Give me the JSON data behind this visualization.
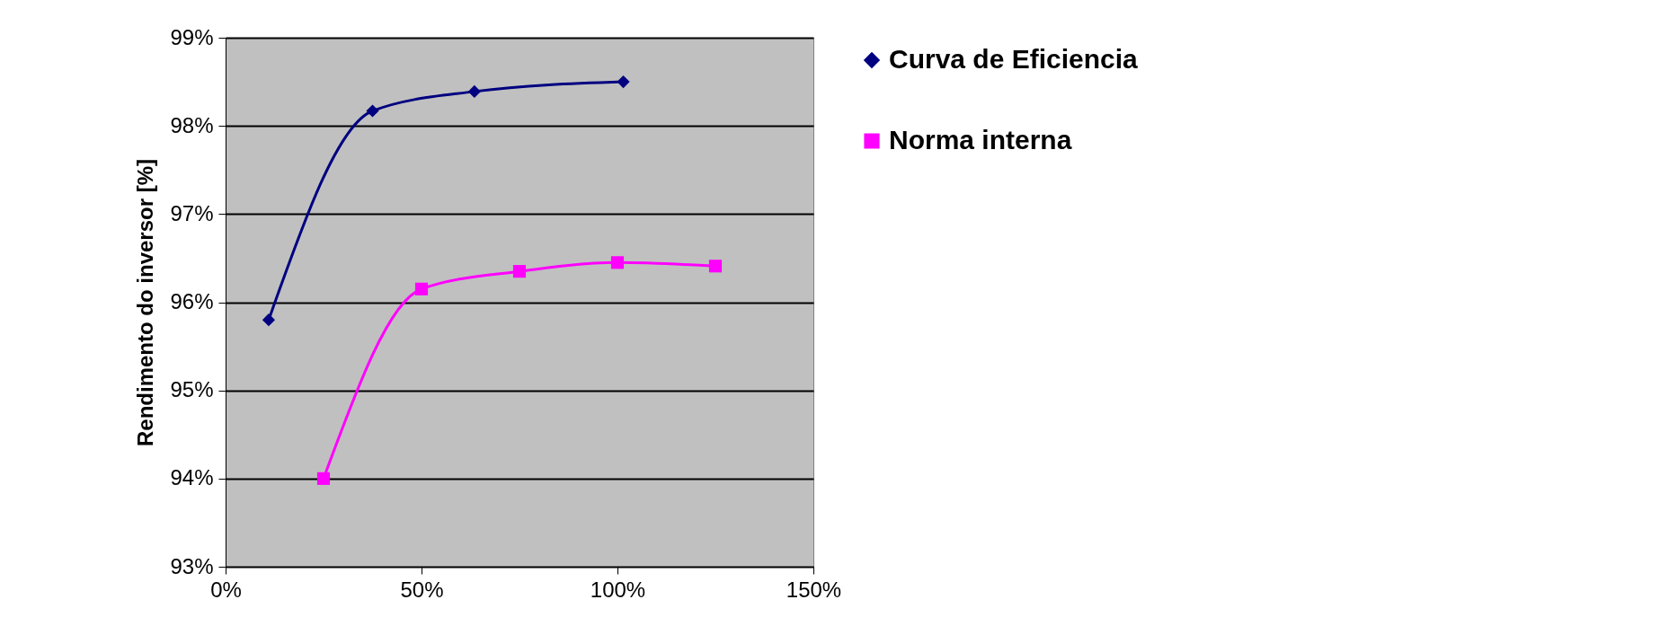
{
  "chart_data": {
    "type": "line",
    "ylabel": "Rendimento do inversor [%]",
    "xlim": [
      0,
      150
    ],
    "xticks": [
      {
        "value": 0,
        "label": "0%"
      },
      {
        "value": 50,
        "label": "50%"
      },
      {
        "value": 100,
        "label": "100%"
      },
      {
        "value": 150,
        "label": "150%"
      }
    ],
    "ylim": [
      93,
      99
    ],
    "yticks": [
      {
        "value": 93,
        "label": "93%"
      },
      {
        "value": 94,
        "label": "94%"
      },
      {
        "value": 95,
        "label": "95%"
      },
      {
        "value": 96,
        "label": "96%"
      },
      {
        "value": 97,
        "label": "97%"
      },
      {
        "value": 98,
        "label": "98%"
      },
      {
        "value": 99,
        "label": "99%"
      }
    ],
    "grid": "y",
    "legend": "right",
    "series": [
      {
        "name": "Curva de Eficiencia",
        "color": "#000080",
        "marker": "diamond",
        "x": [
          11,
          37.5,
          63.5,
          101.5
        ],
        "values": [
          95.8,
          98.17,
          98.39,
          98.5
        ]
      },
      {
        "name": "Norma interna",
        "color": "#ff00ff",
        "marker": "square",
        "x": [
          25,
          50,
          75,
          100,
          125
        ],
        "values": [
          94.0,
          96.15,
          96.35,
          96.45,
          96.41
        ]
      }
    ]
  }
}
